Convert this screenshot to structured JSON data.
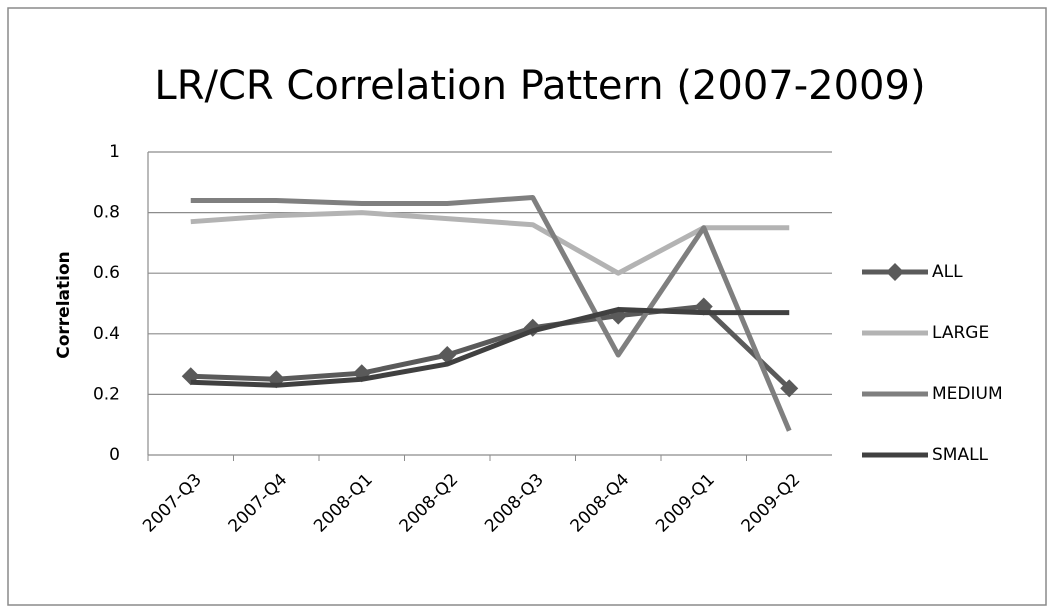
{
  "chart_data": {
    "type": "line",
    "title": "LR/CR Correlation Pattern (2007-2009)",
    "y_label": "Correlation",
    "categories": [
      "2007-Q3",
      "2007-Q4",
      "2008-Q1",
      "2008-Q2",
      "2008-Q3",
      "2008-Q4",
      "2009-Q1",
      "2009-Q2"
    ],
    "series": [
      {
        "name": "ALL",
        "color": "#5a5a5a",
        "marker": "diamond",
        "values": [
          0.26,
          0.25,
          0.27,
          0.33,
          0.42,
          0.46,
          0.49,
          0.22
        ]
      },
      {
        "name": "LARGE",
        "color": "#b3b3b3",
        "values": [
          0.77,
          0.79,
          0.8,
          0.78,
          0.76,
          0.6,
          0.75,
          0.75
        ]
      },
      {
        "name": "MEDIUM",
        "color": "#7f7f7f",
        "values": [
          0.84,
          0.84,
          0.83,
          0.83,
          0.85,
          0.33,
          0.75,
          0.08
        ]
      },
      {
        "name": "SMALL",
        "color": "#404040",
        "values": [
          0.24,
          0.23,
          0.25,
          0.3,
          0.41,
          0.48,
          0.47,
          0.47
        ]
      }
    ],
    "ylim": [
      0,
      1
    ],
    "yticks": [
      0,
      0.2,
      0.4,
      0.6,
      0.8,
      1
    ],
    "grid": true,
    "legend": "right"
  }
}
